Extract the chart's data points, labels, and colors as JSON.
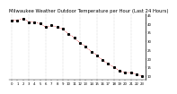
{
  "title": "Milwaukee Weather Outdoor Temperature per Hour (Last 24 Hours)",
  "hours": [
    0,
    1,
    2,
    3,
    4,
    5,
    6,
    7,
    8,
    9,
    10,
    11,
    12,
    13,
    14,
    15,
    16,
    17,
    18,
    19,
    20,
    21,
    22,
    23
  ],
  "temperatures": [
    42,
    42,
    43,
    41,
    41,
    40,
    38,
    39,
    38,
    37,
    34,
    32,
    29,
    27,
    24,
    22,
    19,
    17,
    15,
    13,
    12,
    12,
    11,
    10
  ],
  "line_color": "#dd0000",
  "marker_color": "#000000",
  "bg_color": "#ffffff",
  "plot_bg_color": "#ffffff",
  "grid_color": "#aaaaaa",
  "ylim_min": 8,
  "ylim_max": 46,
  "ytick_start": 10,
  "ytick_end": 45,
  "ytick_interval": 5,
  "title_fontsize": 3.8,
  "tick_fontsize": 2.8,
  "marker_size": 1.2,
  "line_width": 0.5
}
